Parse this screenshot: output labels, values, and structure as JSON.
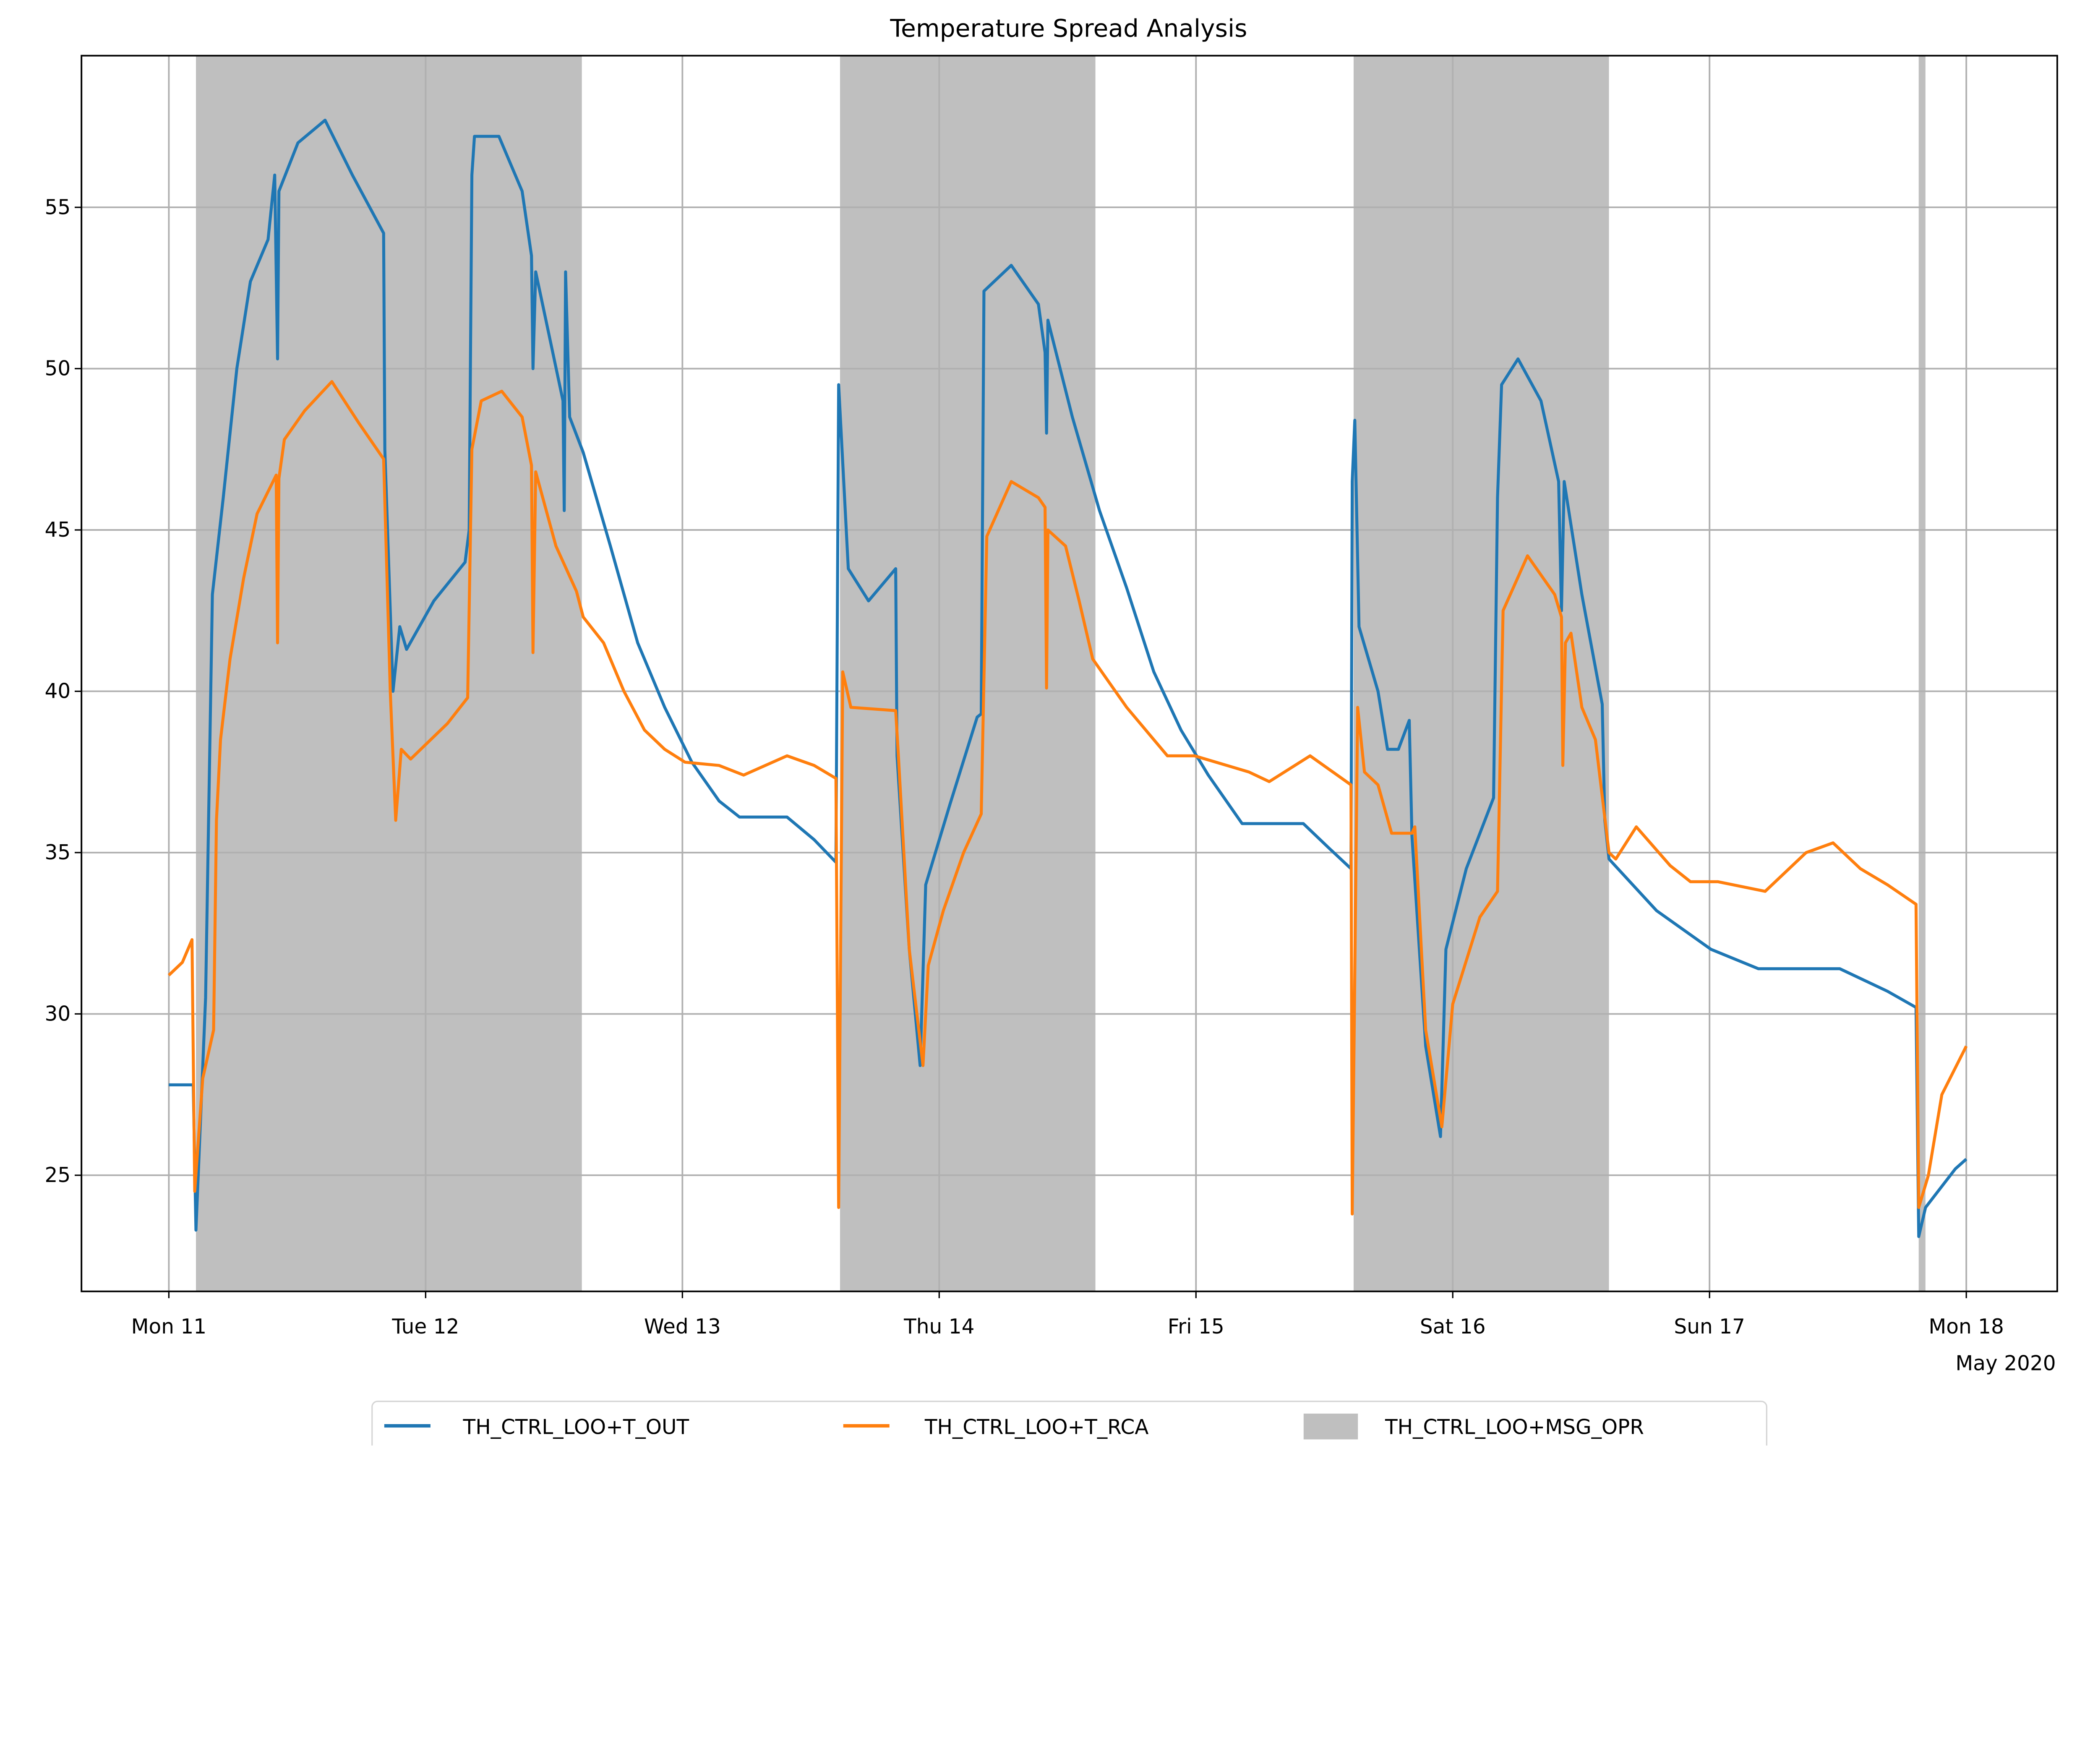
{
  "chart_data": {
    "type": "line",
    "title": "Temperature Spread Analysis",
    "xlabel": "",
    "ylabel": "",
    "xlim": [
      "2020-05-10T15:50",
      "2020-05-18T08:30"
    ],
    "ylim": [
      21.4,
      59.7
    ],
    "grid": true,
    "legend_position": "bottom-center",
    "x_ticks": [
      {
        "date": "2020-05-11T00:00",
        "label": "Mon 11"
      },
      {
        "date": "2020-05-12T00:00",
        "label": "Tue 12"
      },
      {
        "date": "2020-05-13T00:00",
        "label": "Wed 13"
      },
      {
        "date": "2020-05-14T00:00",
        "label": "Thu 14"
      },
      {
        "date": "2020-05-15T00:00",
        "label": "Fri 15"
      },
      {
        "date": "2020-05-16T00:00",
        "label": "Sat 16"
      },
      {
        "date": "2020-05-17T00:00",
        "label": "Sun 17"
      },
      {
        "date": "2020-05-18T00:00",
        "label": "Mon 18"
      }
    ],
    "x_offset_label": "May 2020",
    "y_ticks": [
      25,
      30,
      35,
      40,
      45,
      50,
      55
    ],
    "series": [
      {
        "name": "TH_CTRL_LOO+T_OUT",
        "color": "#1f77b4",
        "points": [
          [
            "2020-05-11T00:00",
            27.8
          ],
          [
            "2020-05-11T02:17",
            27.8
          ],
          [
            "2020-05-11T02:32",
            23.3
          ],
          [
            "2020-05-11T03:26",
            30.5
          ],
          [
            "2020-05-11T04:04",
            43
          ],
          [
            "2020-05-11T05:05",
            46
          ],
          [
            "2020-05-11T06:21",
            50
          ],
          [
            "2020-05-11T07:37",
            52.7
          ],
          [
            "2020-05-11T09:16",
            54
          ],
          [
            "2020-05-11T09:54",
            56
          ],
          [
            "2020-05-11T10:10",
            50.3
          ],
          [
            "2020-05-11T10:17",
            55.5
          ],
          [
            "2020-05-11T12:04",
            57
          ],
          [
            "2020-05-11T14:36",
            57.7
          ],
          [
            "2020-05-11T17:09",
            56
          ],
          [
            "2020-05-11T20:04",
            54.2
          ],
          [
            "2020-05-11T20:11",
            47.5
          ],
          [
            "2020-05-11T20:57",
            40
          ],
          [
            "2020-05-11T21:35",
            42
          ],
          [
            "2020-05-11T22:13",
            41.3
          ],
          [
            "2020-05-12T00:46",
            42.8
          ],
          [
            "2020-05-12T03:41",
            44
          ],
          [
            "2020-05-12T04:04",
            45
          ],
          [
            "2020-05-12T04:19",
            56
          ],
          [
            "2020-05-12T04:34",
            57.2
          ],
          [
            "2020-05-12T06:51",
            57.2
          ],
          [
            "2020-05-12T09:01",
            55.5
          ],
          [
            "2020-05-12T09:54",
            53.5
          ],
          [
            "2020-05-12T10:02",
            50
          ],
          [
            "2020-05-12T10:17",
            53
          ],
          [
            "2020-05-12T12:50",
            49
          ],
          [
            "2020-05-12T12:57",
            45.6
          ],
          [
            "2020-05-12T13:05",
            53
          ],
          [
            "2020-05-12T13:28",
            48.5
          ],
          [
            "2020-05-12T14:44",
            47.4
          ],
          [
            "2020-05-12T17:16",
            44.5
          ],
          [
            "2020-05-12T19:49",
            41.5
          ],
          [
            "2020-05-12T22:21",
            39.5
          ],
          [
            "2020-05-13T00:53",
            37.8
          ],
          [
            "2020-05-13T03:26",
            36.6
          ],
          [
            "2020-05-13T05:20",
            36.1
          ],
          [
            "2020-05-13T09:47",
            36.1
          ],
          [
            "2020-05-13T12:19",
            35.4
          ],
          [
            "2020-05-13T14:21",
            34.7
          ],
          [
            "2020-05-13T14:36",
            49.5
          ],
          [
            "2020-05-13T15:30",
            43.8
          ],
          [
            "2020-05-13T17:24",
            42.8
          ],
          [
            "2020-05-13T19:56",
            43.8
          ],
          [
            "2020-05-13T20:04",
            38
          ],
          [
            "2020-05-13T21:12",
            32
          ],
          [
            "2020-05-13T22:13",
            28.4
          ],
          [
            "2020-05-13T22:44",
            34
          ],
          [
            "2020-05-14T01:01",
            36.5
          ],
          [
            "2020-05-14T03:33",
            39.2
          ],
          [
            "2020-05-14T03:56",
            39.3
          ],
          [
            "2020-05-14T04:11",
            52.4
          ],
          [
            "2020-05-14T06:44",
            53.2
          ],
          [
            "2020-05-14T09:16",
            52
          ],
          [
            "2020-05-14T09:54",
            50.5
          ],
          [
            "2020-05-14T10:02",
            48
          ],
          [
            "2020-05-14T10:10",
            51.5
          ],
          [
            "2020-05-14T12:27",
            48.5
          ],
          [
            "2020-05-14T14:59",
            45.6
          ],
          [
            "2020-05-14T17:31",
            43.2
          ],
          [
            "2020-05-14T20:04",
            40.6
          ],
          [
            "2020-05-14T22:36",
            38.8
          ],
          [
            "2020-05-15T01:09",
            37.4
          ],
          [
            "2020-05-15T04:19",
            35.9
          ],
          [
            "2020-05-15T10:02",
            35.9
          ],
          [
            "2020-05-15T12:34",
            35.1
          ],
          [
            "2020-05-15T14:29",
            34.5
          ],
          [
            "2020-05-15T14:36",
            46.5
          ],
          [
            "2020-05-15T14:51",
            48.4
          ],
          [
            "2020-05-15T15:14",
            42
          ],
          [
            "2020-05-15T17:01",
            40
          ],
          [
            "2020-05-15T17:54",
            38.2
          ],
          [
            "2020-05-15T18:55",
            38.2
          ],
          [
            "2020-05-15T19:56",
            39.1
          ],
          [
            "2020-05-15T20:11",
            35.5
          ],
          [
            "2020-05-15T21:28",
            29
          ],
          [
            "2020-05-15T22:51",
            26.2
          ],
          [
            "2020-05-15T23:22",
            32
          ],
          [
            "2020-05-16T01:16",
            34.5
          ],
          [
            "2020-05-16T03:49",
            36.7
          ],
          [
            "2020-05-16T04:11",
            46
          ],
          [
            "2020-05-16T04:34",
            49.5
          ],
          [
            "2020-05-16T06:06",
            50.3
          ],
          [
            "2020-05-16T08:15",
            49
          ],
          [
            "2020-05-16T09:54",
            46.5
          ],
          [
            "2020-05-16T10:10",
            42.5
          ],
          [
            "2020-05-16T10:25",
            46.5
          ],
          [
            "2020-05-16T12:04",
            43
          ],
          [
            "2020-05-16T13:58",
            39.6
          ],
          [
            "2020-05-16T14:13",
            36
          ],
          [
            "2020-05-16T14:36",
            34.8
          ],
          [
            "2020-05-16T19:03",
            33.2
          ],
          [
            "2020-05-17T00:08",
            32
          ],
          [
            "2020-05-17T04:34",
            31.4
          ],
          [
            "2020-05-17T12:11",
            31.4
          ],
          [
            "2020-05-17T16:38",
            30.7
          ],
          [
            "2020-05-17T19:18",
            30.2
          ],
          [
            "2020-05-17T19:33",
            23.1
          ],
          [
            "2020-05-17T20:11",
            24
          ],
          [
            "2020-05-17T22:59",
            25.2
          ],
          [
            "2020-05-18T00:00",
            25.5
          ]
        ]
      },
      {
        "name": "TH_CTRL_LOO+T_RCA",
        "color": "#ff7f0e",
        "points": [
          [
            "2020-05-11T00:00",
            31.2
          ],
          [
            "2020-05-11T01:16",
            31.6
          ],
          [
            "2020-05-11T02:10",
            32.3
          ],
          [
            "2020-05-11T02:25",
            24.5
          ],
          [
            "2020-05-11T03:10",
            28
          ],
          [
            "2020-05-11T04:11",
            29.5
          ],
          [
            "2020-05-11T04:27",
            36
          ],
          [
            "2020-05-11T04:50",
            38.5
          ],
          [
            "2020-05-11T05:43",
            41
          ],
          [
            "2020-05-11T06:59",
            43.5
          ],
          [
            "2020-05-11T08:15",
            45.5
          ],
          [
            "2020-05-11T10:02",
            46.7
          ],
          [
            "2020-05-11T10:10",
            41.5
          ],
          [
            "2020-05-11T10:17",
            46.6
          ],
          [
            "2020-05-11T10:48",
            47.8
          ],
          [
            "2020-05-11T12:42",
            48.7
          ],
          [
            "2020-05-11T15:14",
            49.6
          ],
          [
            "2020-05-11T17:47",
            48.3
          ],
          [
            "2020-05-11T20:04",
            47.2
          ],
          [
            "2020-05-11T20:42",
            40
          ],
          [
            "2020-05-11T21:12",
            36
          ],
          [
            "2020-05-11T21:43",
            38.2
          ],
          [
            "2020-05-11T22:36",
            37.9
          ],
          [
            "2020-05-12T02:02",
            39
          ],
          [
            "2020-05-12T03:56",
            39.8
          ],
          [
            "2020-05-12T04:19",
            47.5
          ],
          [
            "2020-05-12T05:12",
            49
          ],
          [
            "2020-05-12T07:07",
            49.3
          ],
          [
            "2020-05-12T09:01",
            48.5
          ],
          [
            "2020-05-12T09:54",
            47
          ],
          [
            "2020-05-12T10:02",
            41.2
          ],
          [
            "2020-05-12T10:17",
            46.8
          ],
          [
            "2020-05-12T12:11",
            44.5
          ],
          [
            "2020-05-12T14:06",
            43.1
          ],
          [
            "2020-05-12T14:44",
            42.3
          ],
          [
            "2020-05-12T16:38",
            41.5
          ],
          [
            "2020-05-12T18:32",
            40
          ],
          [
            "2020-05-12T20:27",
            38.8
          ],
          [
            "2020-05-12T22:21",
            38.2
          ],
          [
            "2020-05-13T00:15",
            37.8
          ],
          [
            "2020-05-13T03:26",
            37.7
          ],
          [
            "2020-05-13T05:43",
            37.4
          ],
          [
            "2020-05-13T09:47",
            38
          ],
          [
            "2020-05-13T12:19",
            37.7
          ],
          [
            "2020-05-13T14:21",
            37.3
          ],
          [
            "2020-05-13T14:36",
            24
          ],
          [
            "2020-05-13T14:59",
            40.6
          ],
          [
            "2020-05-13T15:45",
            39.5
          ],
          [
            "2020-05-13T19:56",
            39.4
          ],
          [
            "2020-05-13T20:11",
            38
          ],
          [
            "2020-05-13T21:12",
            32
          ],
          [
            "2020-05-13T22:29",
            28.4
          ],
          [
            "2020-05-13T22:59",
            31.5
          ],
          [
            "2020-05-14T00:23",
            33.2
          ],
          [
            "2020-05-14T02:17",
            35
          ],
          [
            "2020-05-14T03:56",
            36.2
          ],
          [
            "2020-05-14T04:27",
            44.8
          ],
          [
            "2020-05-14T06:44",
            46.5
          ],
          [
            "2020-05-14T09:16",
            46
          ],
          [
            "2020-05-14T09:54",
            45.7
          ],
          [
            "2020-05-14T10:02",
            40.1
          ],
          [
            "2020-05-14T10:10",
            45
          ],
          [
            "2020-05-14T11:49",
            44.5
          ],
          [
            "2020-05-14T13:05",
            42.8
          ],
          [
            "2020-05-14T14:21",
            41
          ],
          [
            "2020-05-14T17:31",
            39.5
          ],
          [
            "2020-05-14T20:04",
            38.5
          ],
          [
            "2020-05-14T21:20",
            38
          ],
          [
            "2020-05-14T23:52",
            38
          ],
          [
            "2020-05-15T04:57",
            37.5
          ],
          [
            "2020-05-15T06:51",
            37.2
          ],
          [
            "2020-05-15T10:40",
            38
          ],
          [
            "2020-05-15T14:29",
            37.1
          ],
          [
            "2020-05-15T14:36",
            23.8
          ],
          [
            "2020-05-15T15:07",
            39.5
          ],
          [
            "2020-05-15T15:45",
            37.5
          ],
          [
            "2020-05-15T17:01",
            37.1
          ],
          [
            "2020-05-15T18:17",
            35.6
          ],
          [
            "2020-05-15T20:11",
            35.6
          ],
          [
            "2020-05-15T20:27",
            35.8
          ],
          [
            "2020-05-15T21:28",
            29.5
          ],
          [
            "2020-05-15T22:59",
            26.5
          ],
          [
            "2020-05-16T00:00",
            30.3
          ],
          [
            "2020-05-16T02:32",
            33
          ],
          [
            "2020-05-16T04:11",
            33.8
          ],
          [
            "2020-05-16T04:42",
            42.5
          ],
          [
            "2020-05-16T06:59",
            44.2
          ],
          [
            "2020-05-16T09:32",
            43
          ],
          [
            "2020-05-16T10:10",
            42.3
          ],
          [
            "2020-05-16T10:17",
            37.7
          ],
          [
            "2020-05-16T10:32",
            41.5
          ],
          [
            "2020-05-16T11:03",
            41.8
          ],
          [
            "2020-05-16T12:04",
            39.5
          ],
          [
            "2020-05-16T13:20",
            38.5
          ],
          [
            "2020-05-16T14:36",
            35
          ],
          [
            "2020-05-16T15:14",
            34.8
          ],
          [
            "2020-05-16T17:09",
            35.8
          ],
          [
            "2020-05-16T20:19",
            34.6
          ],
          [
            "2020-05-16T22:13",
            34.1
          ],
          [
            "2020-05-17T00:46",
            34.1
          ],
          [
            "2020-05-17T05:12",
            33.8
          ],
          [
            "2020-05-17T09:01",
            35
          ],
          [
            "2020-05-17T11:33",
            35.3
          ],
          [
            "2020-05-17T14:06",
            34.5
          ],
          [
            "2020-05-17T16:38",
            34
          ],
          [
            "2020-05-17T19:18",
            33.4
          ],
          [
            "2020-05-17T19:33",
            24
          ],
          [
            "2020-05-17T20:27",
            25
          ],
          [
            "2020-05-17T21:43",
            27.5
          ],
          [
            "2020-05-18T00:00",
            29
          ]
        ]
      }
    ],
    "spans": {
      "name": "TH_CTRL_LOO+MSG_OPR",
      "color": "#bfbfbf",
      "intervals": [
        [
          "2020-05-11T02:32",
          "2020-05-12T14:36"
        ],
        [
          "2020-05-13T14:44",
          "2020-05-14T14:36"
        ],
        [
          "2020-05-15T14:44",
          "2020-05-16T14:36"
        ],
        [
          "2020-05-17T19:33",
          "2020-05-17T20:11"
        ]
      ]
    }
  }
}
